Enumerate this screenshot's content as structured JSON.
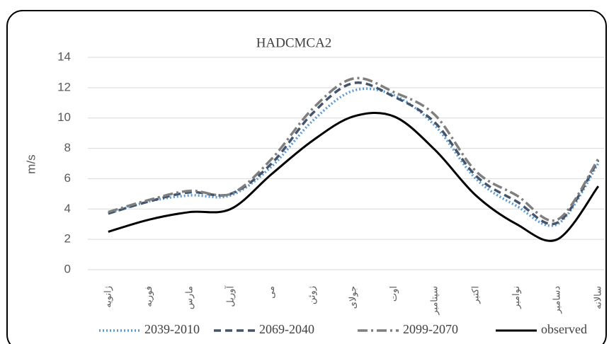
{
  "chart_data": {
    "type": "line",
    "title": "HADCMCA2",
    "y_label": "m/s",
    "categories": [
      "ژانویه",
      "فوریه",
      "مارس",
      "آوریل",
      "می",
      "ژوئن",
      "جولای",
      "اوت",
      "سپتامبر",
      "اکتبر",
      "نوامبر",
      "دسامبر",
      "سالانه"
    ],
    "series": [
      {
        "name": "2039-2010",
        "color": "#5b9bd5",
        "style": "dotted",
        "values": [
          3.7,
          4.5,
          4.9,
          4.9,
          6.8,
          9.8,
          11.8,
          11.5,
          9.5,
          6.0,
          4.2,
          3.0,
          7.0
        ]
      },
      {
        "name": "2069-2040",
        "color": "#44546a",
        "style": "dashed",
        "values": [
          3.7,
          4.5,
          5.1,
          5.0,
          7.0,
          10.3,
          12.3,
          11.4,
          9.7,
          6.2,
          4.5,
          3.1,
          7.2
        ]
      },
      {
        "name": "2099-2070",
        "color": "#7f7f7f",
        "style": "dashdot",
        "values": [
          3.8,
          4.6,
          5.2,
          5.0,
          7.3,
          10.6,
          12.6,
          11.7,
          10.2,
          6.5,
          4.9,
          3.3,
          7.3
        ]
      },
      {
        "name": "observed",
        "color": "#000000",
        "style": "solid",
        "values": [
          2.5,
          3.3,
          3.8,
          4.0,
          6.3,
          8.5,
          10.1,
          10.1,
          7.9,
          4.9,
          3.0,
          2.0,
          5.5
        ]
      }
    ],
    "ylim": [
      0,
      14
    ],
    "yticks": [
      0,
      2,
      4,
      6,
      8,
      10,
      12,
      14
    ],
    "grid": true,
    "legend": "bottom"
  }
}
